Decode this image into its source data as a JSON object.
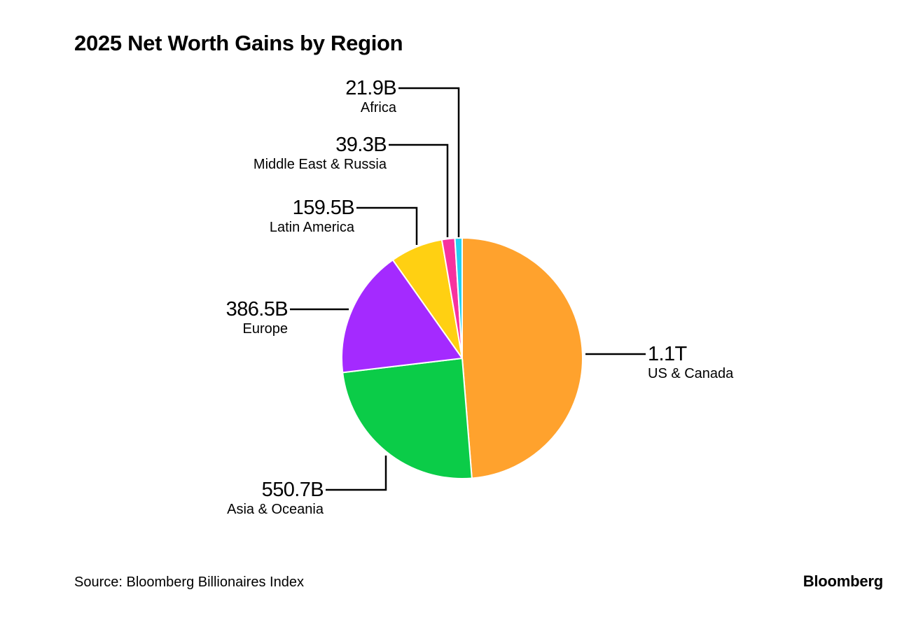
{
  "chart_data": {
    "type": "pie",
    "title": "2025 Net Worth Gains by Region",
    "value_unit": "USD billions",
    "slices": [
      {
        "name": "US & Canada",
        "value": 1100,
        "value_label": "1.1T",
        "color": "#FFA22D"
      },
      {
        "name": "Asia & Oceania",
        "value": 550.7,
        "value_label": "550.7B",
        "color": "#0BCC48"
      },
      {
        "name": "Europe",
        "value": 386.5,
        "value_label": "386.5B",
        "color": "#A42AFF"
      },
      {
        "name": "Latin America",
        "value": 159.5,
        "value_label": "159.5B",
        "color": "#FFD012"
      },
      {
        "name": "Middle East & Russia",
        "value": 39.3,
        "value_label": "39.3B",
        "color": "#F7329F"
      },
      {
        "name": "Africa",
        "value": 21.9,
        "value_label": "21.9B",
        "color": "#23D0F2"
      }
    ],
    "start": "12 o'clock",
    "direction": "clockwise",
    "legend": "none",
    "labels": "outside with leader lines"
  },
  "footer": {
    "source": "Source: Bloomberg Billionaires Index",
    "brand": "Bloomberg"
  }
}
